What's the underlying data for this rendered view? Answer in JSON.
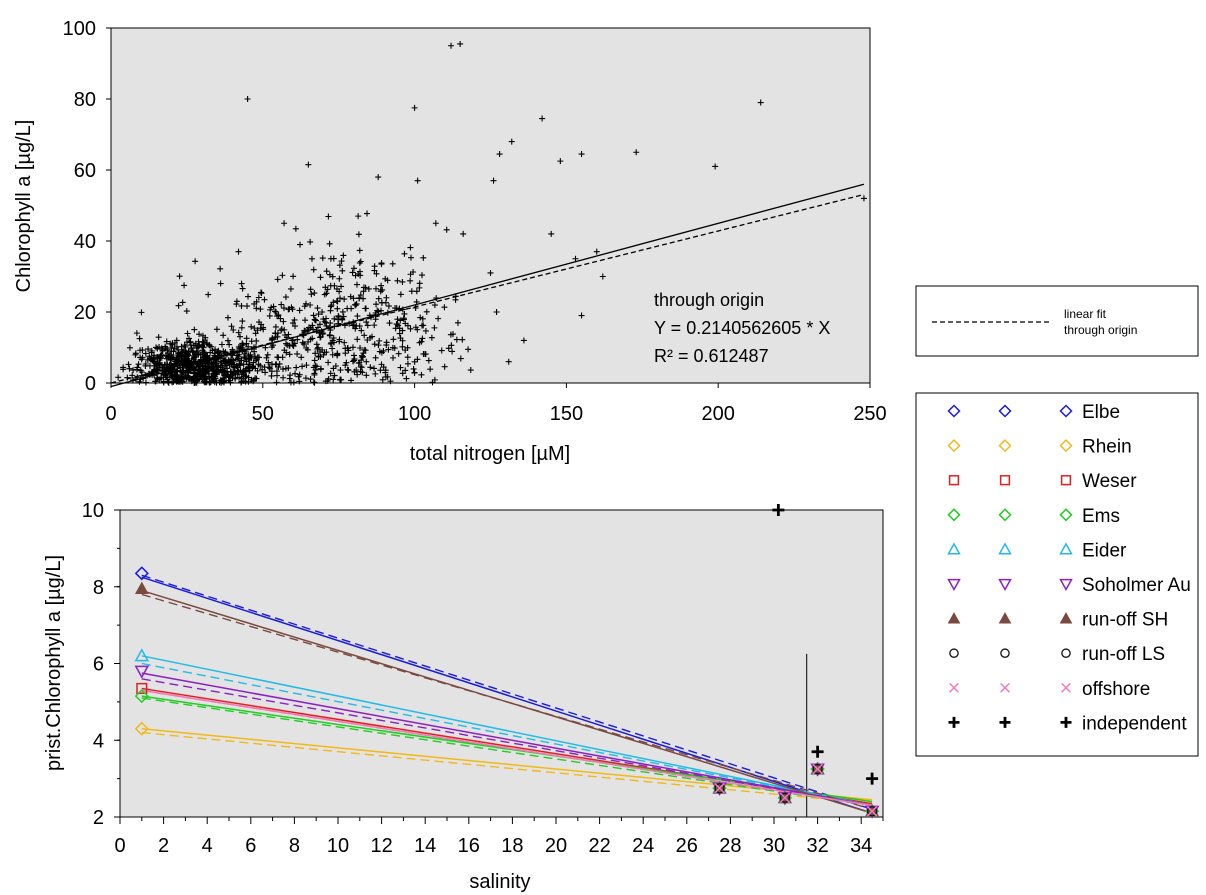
{
  "chart_data": [
    {
      "type": "scatter",
      "xlabel": "total nitrogen [µM]",
      "ylabel": "Chlorophyll a [µg/L]",
      "xlim": [
        0,
        250
      ],
      "ylim": [
        0,
        100
      ],
      "xticks": [
        0,
        50,
        100,
        150,
        200,
        250
      ],
      "yticks": [
        0,
        20,
        40,
        60,
        80,
        100
      ],
      "background": "#e3e3e3",
      "grid": false,
      "annotation": [
        "through origin",
        "Y = 0.2140562605 * X",
        "R² = 0.612487"
      ],
      "legend": {
        "placement": "right",
        "entries": [
          {
            "label": "linear fit",
            "style": "solid"
          },
          {
            "label": "through origin",
            "style": "dashed"
          }
        ]
      },
      "fits": [
        {
          "style": "solid",
          "x": [
            0,
            248
          ],
          "y": [
            -1,
            56
          ]
        },
        {
          "style": "dashed",
          "x": [
            0,
            248
          ],
          "y": [
            0,
            53.1
          ]
        }
      ],
      "points_outliers": [
        {
          "x": 45,
          "y": 80
        },
        {
          "x": 65,
          "y": 61.5
        },
        {
          "x": 100,
          "y": 77.5
        },
        {
          "x": 101,
          "y": 57
        },
        {
          "x": 112,
          "y": 95
        },
        {
          "x": 115,
          "y": 95.5
        },
        {
          "x": 126,
          "y": 57
        },
        {
          "x": 128,
          "y": 64.5
        },
        {
          "x": 132,
          "y": 68
        },
        {
          "x": 142,
          "y": 74.5
        },
        {
          "x": 148,
          "y": 62.5
        },
        {
          "x": 155,
          "y": 64.5
        },
        {
          "x": 173,
          "y": 65
        },
        {
          "x": 199,
          "y": 61
        },
        {
          "x": 214,
          "y": 79
        },
        {
          "x": 248,
          "y": 52
        },
        {
          "x": 88,
          "y": 58
        },
        {
          "x": 107,
          "y": 45
        },
        {
          "x": 116,
          "y": 42
        },
        {
          "x": 145,
          "y": 42
        },
        {
          "x": 153,
          "y": 35
        },
        {
          "x": 155,
          "y": 19
        },
        {
          "x": 162,
          "y": 30
        },
        {
          "x": 160,
          "y": 37
        },
        {
          "x": 131,
          "y": 6
        },
        {
          "x": 136,
          "y": 12
        },
        {
          "x": 127,
          "y": 20
        },
        {
          "x": 125,
          "y": 31
        },
        {
          "x": 42,
          "y": 37
        },
        {
          "x": 57,
          "y": 45
        },
        {
          "x": 43,
          "y": 28
        }
      ],
      "clusters": [
        {
          "cx": 28,
          "cy": 4,
          "sx": 10,
          "sy": 3.5,
          "n": 650
        },
        {
          "cx": 55,
          "cy": 12,
          "sx": 18,
          "sy": 8,
          "n": 300
        },
        {
          "cx": 82,
          "cy": 18,
          "sx": 12,
          "sy": 12,
          "n": 230
        },
        {
          "cx": 100,
          "cy": 12,
          "sx": 10,
          "sy": 8,
          "n": 60
        }
      ]
    },
    {
      "type": "scatter",
      "xlabel": "salinity",
      "ylabel": "prist.Chlorophyll a [µg/L]",
      "xlim": [
        0,
        35
      ],
      "ylim": [
        2,
        10
      ],
      "xticks": [
        0,
        2,
        4,
        6,
        8,
        10,
        12,
        14,
        16,
        18,
        20,
        22,
        24,
        26,
        28,
        30,
        32,
        34
      ],
      "yticks": [
        2,
        4,
        6,
        8,
        10
      ],
      "background": "#e3e3e3",
      "grid": false,
      "vline_x": 31.5,
      "series": [
        {
          "name": "Elbe",
          "marker": "diamond",
          "color": "#1a1adc",
          "points": [
            [
              1,
              8.35
            ],
            [
              27.5,
              2.75
            ],
            [
              30.5,
              2.5
            ],
            [
              32,
              3.25
            ],
            [
              34.5,
              2.15
            ]
          ],
          "fit_solid": [
            [
              1,
              8.25
            ],
            [
              34.5,
              2.1
            ]
          ],
          "fit_dashed": [
            [
              1,
              8.3
            ],
            [
              34.5,
              2.2
            ]
          ]
        },
        {
          "name": "Rhein",
          "marker": "diamond",
          "color": "#f2b81a",
          "points": [
            [
              1,
              4.3
            ],
            [
              27.5,
              2.75
            ],
            [
              30.5,
              2.5
            ],
            [
              32,
              3.25
            ],
            [
              34.5,
              2.15
            ]
          ],
          "fit_solid": [
            [
              1,
              4.3
            ],
            [
              34.5,
              2.45
            ]
          ],
          "fit_dashed": [
            [
              1,
              4.2
            ],
            [
              34.5,
              2.35
            ]
          ]
        },
        {
          "name": "Weser",
          "marker": "square",
          "color": "#e02020",
          "points": [
            [
              1,
              5.35
            ],
            [
              27.5,
              2.75
            ],
            [
              30.5,
              2.5
            ],
            [
              32,
              3.25
            ],
            [
              34.5,
              2.15
            ]
          ],
          "fit_solid": [
            [
              1,
              5.35
            ],
            [
              34.5,
              2.35
            ]
          ],
          "fit_dashed": [
            [
              1,
              5.3
            ],
            [
              34.5,
              2.3
            ]
          ]
        },
        {
          "name": "Ems",
          "marker": "diamond",
          "color": "#22cc22",
          "points": [
            [
              1,
              5.15
            ],
            [
              27.5,
              2.75
            ],
            [
              30.5,
              2.5
            ],
            [
              32,
              3.25
            ],
            [
              34.5,
              2.15
            ]
          ],
          "fit_solid": [
            [
              1,
              5.15
            ],
            [
              34.5,
              2.4
            ]
          ],
          "fit_dashed": [
            [
              1,
              5.1
            ],
            [
              34.5,
              2.3
            ]
          ]
        },
        {
          "name": "Eider",
          "marker": "triangle-up",
          "color": "#22bbe6",
          "points": [
            [
              1,
              6.2
            ],
            [
              27.5,
              2.75
            ],
            [
              30.5,
              2.5
            ],
            [
              32,
              3.25
            ],
            [
              34.5,
              2.15
            ]
          ],
          "fit_solid": [
            [
              1,
              6.2
            ],
            [
              34.5,
              2.3
            ]
          ],
          "fit_dashed": [
            [
              1,
              6.0
            ],
            [
              34.5,
              2.3
            ]
          ]
        },
        {
          "name": "Soholmer Au",
          "marker": "triangle-down",
          "color": "#8a20c0",
          "points": [
            [
              1,
              5.8
            ],
            [
              27.5,
              2.75
            ],
            [
              30.5,
              2.5
            ],
            [
              32,
              3.25
            ],
            [
              34.5,
              2.15
            ]
          ],
          "fit_solid": [
            [
              1,
              5.75
            ],
            [
              34.5,
              2.3
            ]
          ],
          "fit_dashed": [
            [
              1,
              5.6
            ],
            [
              34.5,
              2.3
            ]
          ]
        },
        {
          "name": "run-off SH",
          "marker": "triangle-up-filled",
          "color": "#7a4a40",
          "points": [
            [
              1,
              7.95
            ],
            [
              27.5,
              2.75
            ],
            [
              30.5,
              2.5
            ],
            [
              32,
              3.25
            ],
            [
              34.5,
              2.15
            ]
          ],
          "fit_solid": [
            [
              1,
              7.9
            ],
            [
              34.5,
              2.1
            ]
          ],
          "fit_dashed": [
            [
              1,
              7.8
            ],
            [
              34.5,
              2.2
            ]
          ]
        },
        {
          "name": "run-off LS",
          "marker": "circle",
          "color": "#111111",
          "points": [
            [
              27.5,
              2.75
            ],
            [
              30.5,
              2.5
            ],
            [
              32,
              3.25
            ],
            [
              34.5,
              2.15
            ]
          ]
        },
        {
          "name": "offshore",
          "marker": "x",
          "color": "#f07ac0",
          "points": [
            [
              27.5,
              2.75
            ],
            [
              30.5,
              2.5
            ],
            [
              32,
              3.25
            ],
            [
              34.5,
              2.15
            ]
          ],
          "fit_solid": [
            [
              1,
              5.3
            ],
            [
              34.5,
              2.3
            ]
          ]
        },
        {
          "name": "independent",
          "marker": "plus",
          "color": "#000000",
          "points": [
            [
              30.2,
              10
            ],
            [
              32,
              3.7
            ],
            [
              34.5,
              3.0
            ]
          ]
        }
      ],
      "legend": {
        "placement": "right",
        "columns": 3
      }
    }
  ]
}
